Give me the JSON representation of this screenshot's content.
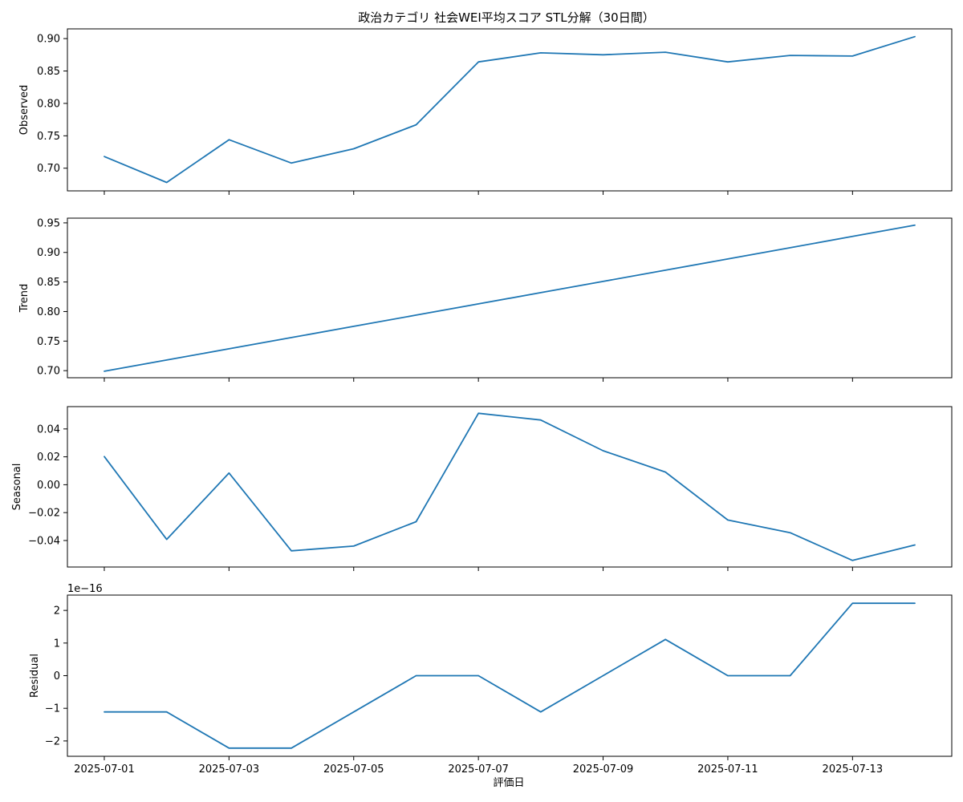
{
  "title": "政治カテゴリ 社会WEI平均スコア STL分解（30日間）",
  "xlabel": "評価日",
  "x_ticks": [
    "2025-07-01",
    "2025-07-03",
    "2025-07-05",
    "2025-07-07",
    "2025-07-09",
    "2025-07-11",
    "2025-07-13"
  ],
  "line_color": "#1f77b4",
  "chart_data": [
    {
      "type": "line",
      "ylabel": "Observed",
      "ylim": [
        0.665,
        0.915
      ],
      "y_ticks": [
        "0.70",
        "0.75",
        "0.80",
        "0.85",
        "0.90"
      ],
      "offset_label": "",
      "x": [
        "2025-07-01",
        "2025-07-02",
        "2025-07-03",
        "2025-07-04",
        "2025-07-05",
        "2025-07-06",
        "2025-07-07",
        "2025-07-08",
        "2025-07-09",
        "2025-07-10",
        "2025-07-11",
        "2025-07-12",
        "2025-07-13",
        "2025-07-14"
      ],
      "values": [
        0.718,
        0.678,
        0.744,
        0.708,
        0.73,
        0.767,
        0.864,
        0.878,
        0.875,
        0.879,
        0.864,
        0.874,
        0.873,
        0.903
      ]
    },
    {
      "type": "line",
      "ylabel": "Trend",
      "ylim": [
        0.688,
        0.958
      ],
      "y_ticks": [
        "0.70",
        "0.75",
        "0.80",
        "0.85",
        "0.90",
        "0.95"
      ],
      "offset_label": "",
      "x": [
        "2025-07-01",
        "2025-07-02",
        "2025-07-03",
        "2025-07-04",
        "2025-07-05",
        "2025-07-06",
        "2025-07-07",
        "2025-07-08",
        "2025-07-09",
        "2025-07-10",
        "2025-07-11",
        "2025-07-12",
        "2025-07-13",
        "2025-07-14"
      ],
      "values": [
        0.699,
        0.718,
        0.737,
        0.756,
        0.775,
        0.794,
        0.813,
        0.832,
        0.851,
        0.87,
        0.889,
        0.908,
        0.927,
        0.946
      ]
    },
    {
      "type": "line",
      "ylabel": "Seasonal",
      "ylim": [
        -0.059,
        0.056
      ],
      "y_ticks": [
        "0.04",
        "0.02",
        "0.00",
        "−0.02",
        "−0.04"
      ],
      "offset_label": "",
      "x": [
        "2025-07-01",
        "2025-07-02",
        "2025-07-03",
        "2025-07-04",
        "2025-07-05",
        "2025-07-06",
        "2025-07-07",
        "2025-07-08",
        "2025-07-09",
        "2025-07-10",
        "2025-07-11",
        "2025-07-12",
        "2025-07-13",
        "2025-07-14"
      ],
      "values": [
        0.0202,
        -0.0392,
        0.0084,
        -0.0474,
        -0.044,
        -0.0265,
        0.0512,
        0.0464,
        0.0244,
        0.0091,
        -0.0253,
        -0.0344,
        -0.0543,
        -0.0432
      ]
    },
    {
      "type": "line",
      "ylabel": "Residual",
      "ylim": [
        -2.47,
        2.47
      ],
      "y_ticks": [
        "2",
        "1",
        "0",
        "−1",
        "−2"
      ],
      "offset_label": "1e−16",
      "x": [
        "2025-07-01",
        "2025-07-02",
        "2025-07-03",
        "2025-07-04",
        "2025-07-05",
        "2025-07-06",
        "2025-07-07",
        "2025-07-08",
        "2025-07-09",
        "2025-07-10",
        "2025-07-11",
        "2025-07-12",
        "2025-07-13",
        "2025-07-14"
      ],
      "values": [
        -1.11,
        -1.11,
        -2.22,
        -2.22,
        -1.11,
        0.0,
        0.0,
        -1.11,
        0.0,
        1.11,
        0.0,
        0.0,
        2.22,
        2.22
      ]
    }
  ]
}
